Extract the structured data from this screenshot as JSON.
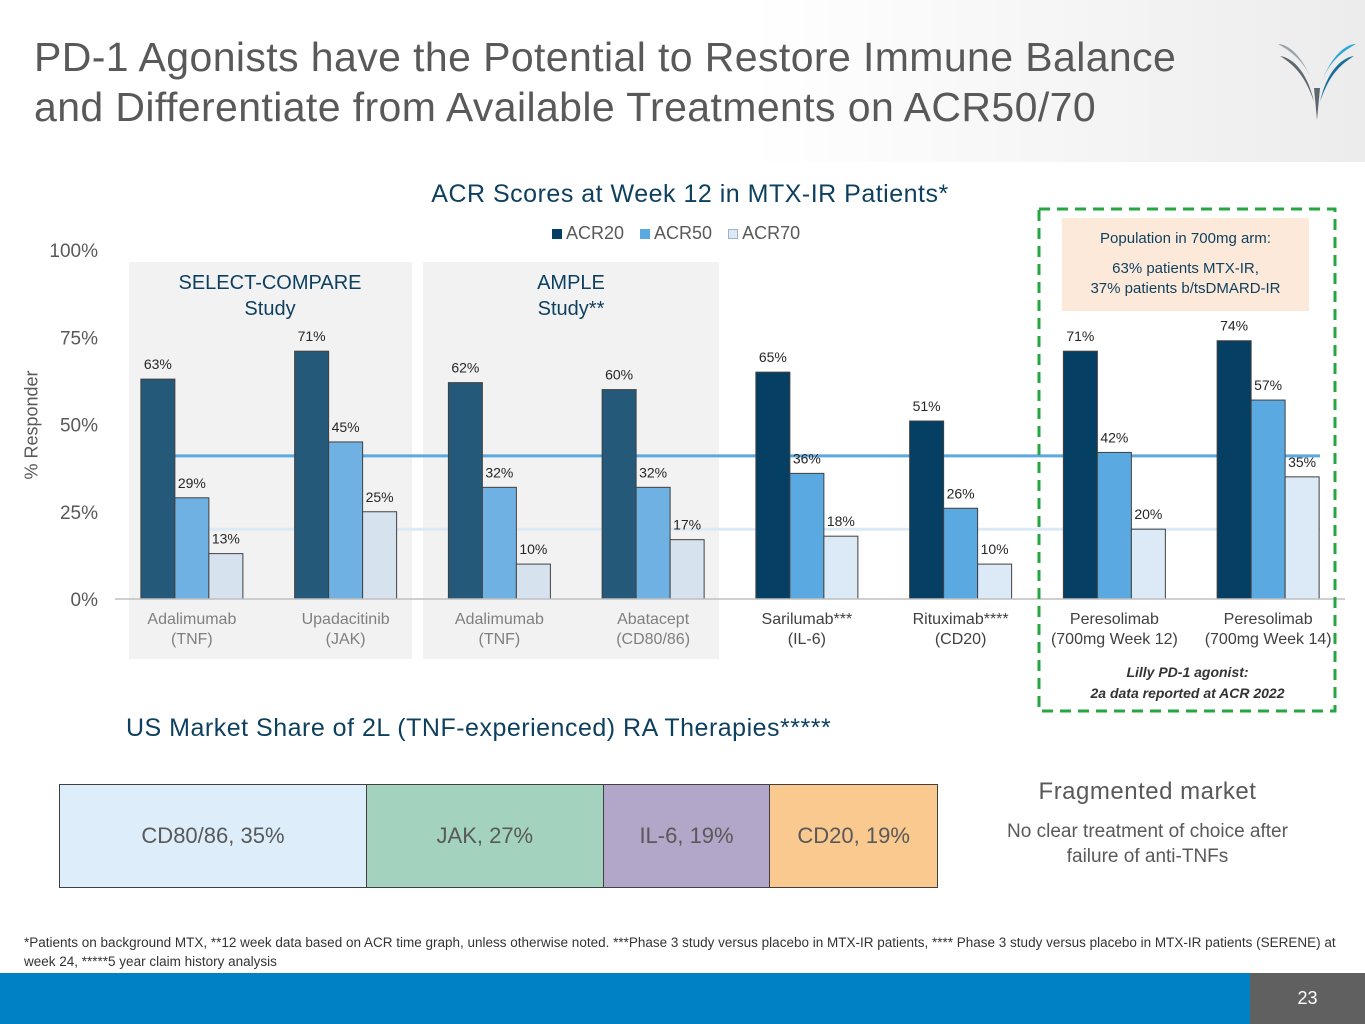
{
  "title_line1": "PD-1 Agonists have the Potential to Restore Immune Balance",
  "title_line2": "and Differentiate from Available Treatments on ACR50/70",
  "colors": {
    "acr20_dark": "#24597a",
    "acr50_dark": "#6fb1e2",
    "acr70_dark": "#d6e3ef",
    "acr20": "#053f63",
    "acr50": "#5ba9e1",
    "acr70": "#dbeaf6",
    "accent": "#0d3f5f",
    "dashed_box": "#26a641",
    "footer": "#0081c6"
  },
  "studies": {
    "select_compare": [
      "SELECT-COMPARE",
      "Study"
    ],
    "ample": [
      "AMPLE",
      "Study**"
    ]
  },
  "population_box": {
    "title": "Population in 700mg arm:",
    "line1": "63% patients MTX-IR,",
    "line2": "37% patients b/tsDMARD-IR"
  },
  "lilly_note": [
    "Lilly PD-1 agonist:",
    "2a data reported at ACR 2022"
  ],
  "chart_data": {
    "type": "bar",
    "title": "ACR Scores at Week 12 in MTX-IR Patients*",
    "ylabel": "% Responder",
    "xlabel": "",
    "ylim": [
      0,
      100
    ],
    "y_ticks": [
      "0%",
      "25%",
      "50%",
      "75%",
      "100%"
    ],
    "legend": [
      "ACR20",
      "ACR50",
      "ACR70"
    ],
    "categories": [
      [
        "Adalimumab",
        "(TNF)"
      ],
      [
        "Upadacitinib",
        "(JAK)"
      ],
      [
        "Adalimumab",
        "(TNF)"
      ],
      [
        "Abatacept",
        "(CD80/86)"
      ],
      [
        "Sarilumab***",
        "(IL-6)"
      ],
      [
        "Rituximab****",
        "(CD20)"
      ],
      [
        "Peresolimab",
        "(700mg Week 12)"
      ],
      [
        "Peresolimab",
        "(700mg Week 14)"
      ]
    ],
    "series": [
      {
        "name": "ACR20",
        "values": [
          63,
          71,
          62,
          60,
          65,
          51,
          71,
          74
        ]
      },
      {
        "name": "ACR50",
        "values": [
          29,
          45,
          32,
          32,
          36,
          26,
          42,
          57
        ]
      },
      {
        "name": "ACR70",
        "values": [
          13,
          25,
          10,
          17,
          18,
          10,
          20,
          35
        ]
      }
    ],
    "value_labels": [
      [
        "63%",
        "29%",
        "13%"
      ],
      [
        "71%",
        "45%",
        "25%"
      ],
      [
        "62%",
        "32%",
        "10%"
      ],
      [
        "60%",
        "32%",
        "17%"
      ],
      [
        "65%",
        "36%",
        "18%"
      ],
      [
        "51%",
        "26%",
        "10%"
      ],
      [
        "71%",
        "42%",
        "20%"
      ],
      [
        "74%",
        "57%",
        "35%"
      ]
    ],
    "reference_lines": [
      {
        "name": "ACR50 level",
        "value": 41
      },
      {
        "name": "ACR70 level",
        "value": 20
      }
    ],
    "highlight_groups": 6
  },
  "market": {
    "title": "US Market Share of 2L (TNF-experienced) RA Therapies*****",
    "segments": [
      {
        "label": "CD80/86, 35%",
        "value": 35,
        "color": "#ddeefa"
      },
      {
        "label": "JAK, 27%",
        "value": 27,
        "color": "#a3d2bf"
      },
      {
        "label": "IL-6, 19%",
        "value": 19,
        "color": "#b2a6c9"
      },
      {
        "label": "CD20, 19%",
        "value": 19,
        "color": "#f9c98f"
      }
    ]
  },
  "fragmented": {
    "heading": "Fragmented market",
    "body": "No clear treatment of choice after failure of anti-TNFs"
  },
  "footnote": "*Patients on background MTX, **12 week data based on ACR time graph, unless otherwise noted. ***Phase 3 study versus placebo in MTX-IR patients, **** Phase 3 study versus placebo in MTX-IR patients (SERENE) at week 24, *****5 year claim history analysis",
  "page_number": "23"
}
